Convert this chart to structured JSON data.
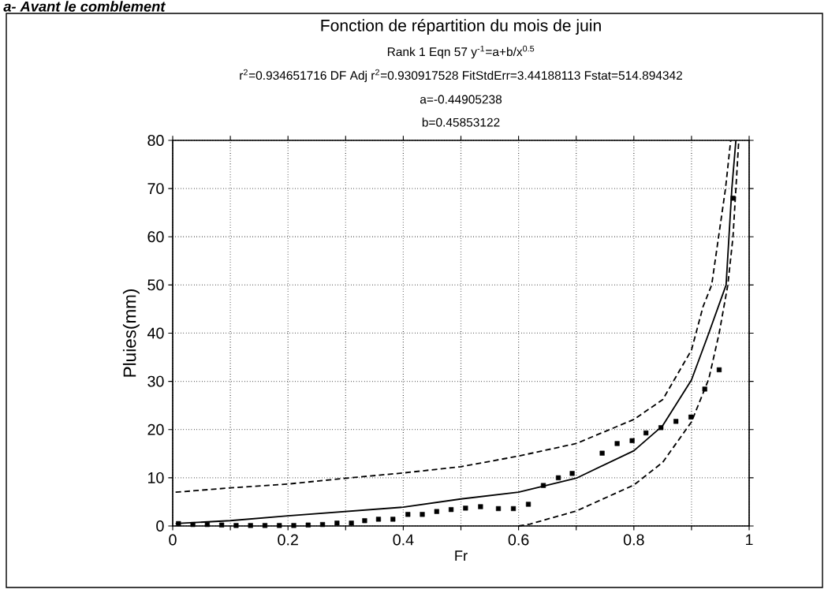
{
  "chart_data": {
    "type": "scatter",
    "title": "Fonction de répartition du mois de juin",
    "subtitle": "Rank 1  Eqn 57  y$^{-1}$=a+b/x$^{0.5}$",
    "annotations": [
      "r$^{2}$=0.934651716 DF Adj r$^{2}$=0.930917528 FitStdErr=3.44188113 Fstat=514.894342",
      "a=-0.44905238",
      "b=0.45853122",
      "a- Avant le comblement"
    ],
    "xlabel": "Fr",
    "ylabel": "Pluies(mm)",
    "xlim": [
      0,
      1
    ],
    "ylim": [
      0,
      80
    ],
    "xticks": [
      {
        "value": 0,
        "label": "0"
      },
      {
        "value": 0.1,
        "label": null
      },
      {
        "value": 0.2,
        "label": "0.2"
      },
      {
        "value": 0.3,
        "label": null
      },
      {
        "value": 0.4,
        "label": "0.4"
      },
      {
        "value": 0.5,
        "label": null
      },
      {
        "value": 0.6,
        "label": "0.6"
      },
      {
        "value": 0.7,
        "label": null
      },
      {
        "value": 0.8,
        "label": "0.8"
      },
      {
        "value": 0.9,
        "label": null
      },
      {
        "value": 1,
        "label": "1"
      }
    ],
    "yticks": [
      0,
      10,
      20,
      30,
      40,
      50,
      60,
      70,
      80
    ],
    "grid": true,
    "series": [
      {
        "marker": "square",
        "color": "#000000",
        "x": [
          0.01,
          0.035,
          0.06,
          0.085,
          0.11,
          0.135,
          0.16,
          0.185,
          0.21,
          0.235,
          0.26,
          0.285,
          0.31,
          0.333,
          0.357,
          0.382,
          0.408,
          0.433,
          0.458,
          0.483,
          0.508,
          0.534,
          0.565,
          0.591,
          0.617,
          0.643,
          0.669,
          0.693,
          0.745,
          0.771,
          0.797,
          0.821,
          0.847,
          0.873,
          0.899,
          0.923,
          0.948,
          0.972
        ],
        "values": [
          0.5,
          0.3,
          0.3,
          0.2,
          0.1,
          0.1,
          0.1,
          0.1,
          0.1,
          0.2,
          0.3,
          0.6,
          0.6,
          1.1,
          1.4,
          1.4,
          2.4,
          2.4,
          3.0,
          3.4,
          3.7,
          4.0,
          3.6,
          3.6,
          4.5,
          8.4,
          10.0,
          10.9,
          15.1,
          17.1,
          17.7,
          19.3,
          20.4,
          21.7,
          22.6,
          28.4,
          32.4,
          68
        ]
      },
      {
        "type": "line",
        "line_style": "solid",
        "marker": "none",
        "color": "#000000",
        "x": [
          0.005,
          0.1,
          0.2,
          0.3,
          0.4,
          0.5,
          0.6,
          0.7,
          0.8,
          0.85,
          0.9,
          0.93,
          0.96,
          0.965,
          0.97,
          0.977
        ],
        "values": [
          0.5,
          1.1,
          2.1,
          3.0,
          3.9,
          5.6,
          7.0,
          9.9,
          15.6,
          20.8,
          30.3,
          40,
          50,
          60,
          70,
          80
        ]
      },
      {
        "type": "line",
        "line_style": "dashed",
        "marker": "none",
        "color": "#000000",
        "x": [
          0.005,
          0.1,
          0.2,
          0.3,
          0.4,
          0.5,
          0.6,
          0.7,
          0.8,
          0.85,
          0.9,
          0.92,
          0.935,
          0.947,
          0.959,
          0.968
        ],
        "values": [
          7,
          7.9,
          8.7,
          9.9,
          11,
          12.3,
          14.5,
          17.1,
          22.1,
          26.2,
          36.5,
          45.5,
          50,
          60,
          70,
          80
        ]
      },
      {
        "type": "line",
        "line_style": "dashed",
        "marker": "none",
        "color": "#000000",
        "x": [
          0.6,
          0.62,
          0.7,
          0.8,
          0.85,
          0.9,
          0.93,
          0.948,
          0.963,
          0.972,
          0.977,
          0.982
        ],
        "values": [
          0,
          0.4,
          3.1,
          8.5,
          13.2,
          21.6,
          30.5,
          40,
          50,
          60,
          70,
          80
        ]
      }
    ]
  }
}
